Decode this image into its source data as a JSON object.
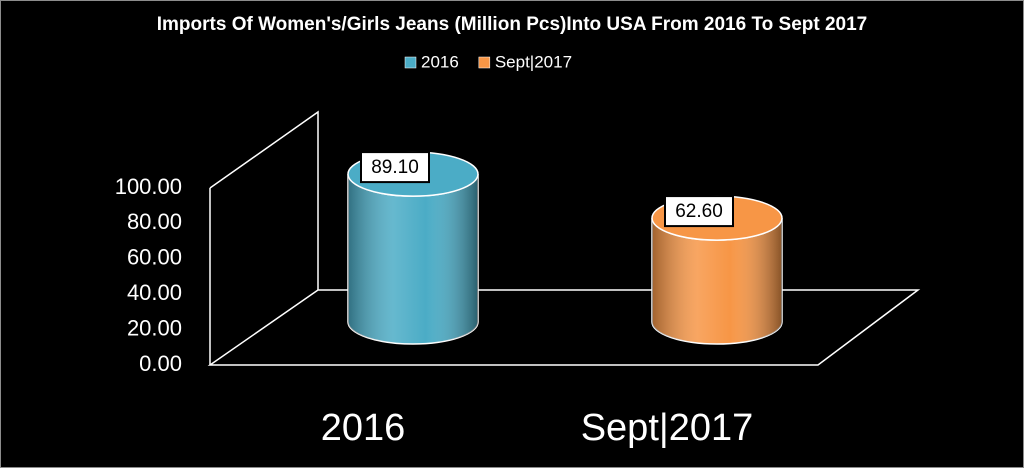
{
  "chart_data": {
    "type": "bar3d-cylinder",
    "title": "Imports Of Women's/Girls Jeans (Million Pcs)Into USA From 2016 To Sept 2017",
    "categories": [
      "2016",
      "Sept|2017"
    ],
    "values": [
      89.1,
      62.6
    ],
    "value_labels": [
      "89.10",
      "62.60"
    ],
    "colors": [
      "#4bacc6",
      "#f79646"
    ],
    "ylim": [
      0,
      100
    ],
    "yticks": [
      {
        "value": 0,
        "label": "0.00"
      },
      {
        "value": 20,
        "label": "20.00"
      },
      {
        "value": 40,
        "label": "40.00"
      },
      {
        "value": 60,
        "label": "60.00"
      },
      {
        "value": 80,
        "label": "80.00"
      },
      {
        "value": 100,
        "label": "100.00"
      }
    ],
    "legend": "top"
  }
}
